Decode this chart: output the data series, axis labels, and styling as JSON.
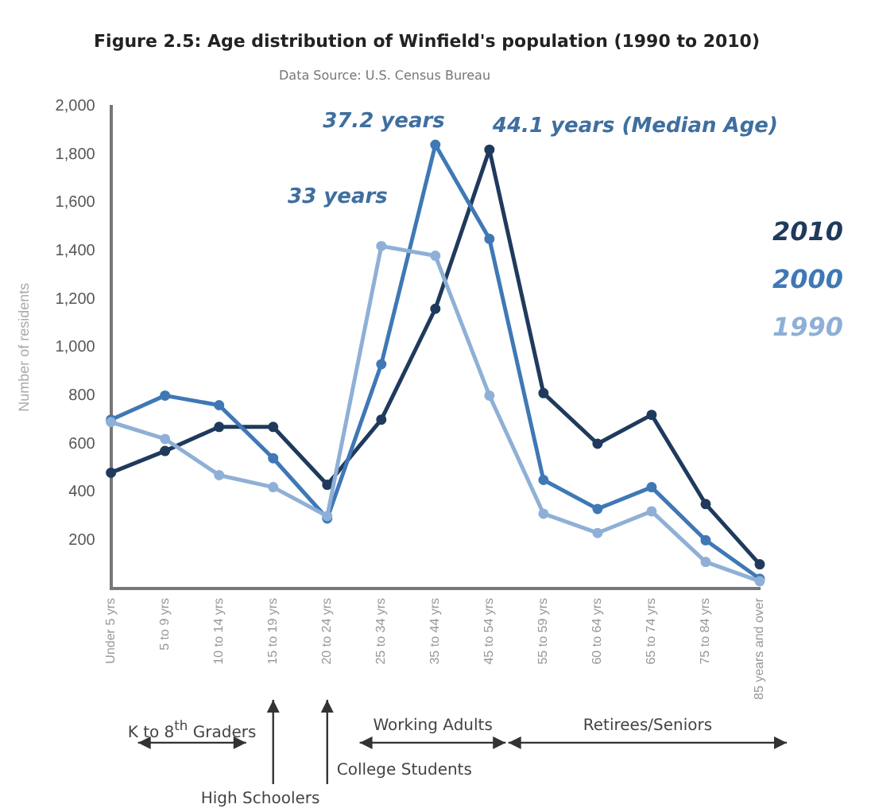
{
  "chart_data": {
    "type": "line",
    "title": "Figure 2.5: Age distribution of Winfield's population (1990 to 2010)",
    "subtitle": "Data Source: U.S. Census Bureau",
    "ylabel": "Number of residents",
    "categories": [
      "Under 5 yrs",
      "5 to 9 yrs",
      "10 to 14 yrs",
      "15 to 19 yrs",
      "20 to 24 yrs",
      "25 to 34 yrs",
      "35 to 44 yrs",
      "45 to 54 yrs",
      "55 to 59 yrs",
      "60 to 64 yrs",
      "65 to 74 yrs",
      "75 to 84 yrs",
      "85 years and over"
    ],
    "series": [
      {
        "name": "2010",
        "color": "#1f3a5c",
        "values": [
          480,
          570,
          670,
          670,
          430,
          700,
          1160,
          1820,
          810,
          600,
          720,
          350,
          100
        ]
      },
      {
        "name": "2000",
        "color": "#3f78b5",
        "values": [
          700,
          800,
          760,
          540,
          290,
          930,
          1840,
          1450,
          450,
          330,
          420,
          200,
          40
        ]
      },
      {
        "name": "1990",
        "color": "#8fb0d6",
        "values": [
          690,
          620,
          470,
          420,
          300,
          1420,
          1380,
          800,
          310,
          230,
          320,
          110,
          30
        ]
      }
    ],
    "ylim": [
      0,
      2000
    ],
    "yticks": [
      200,
      400,
      600,
      800,
      {
        "value": 1000,
        "label": "1,000"
      },
      {
        "value": 1200,
        "label": "1,200"
      },
      {
        "value": 1400,
        "label": "1,400"
      },
      {
        "value": 1600,
        "label": "1,600"
      },
      {
        "value": 1800,
        "label": "1,800"
      },
      {
        "value": 2000,
        "label": "2,000"
      }
    ],
    "grid": false,
    "legend": "right",
    "marker": "circle",
    "line_style": "solid",
    "annotations": [
      {
        "text": "33 years",
        "x": "25 to 34 yrs",
        "y": 1420
      },
      {
        "text": "37.2 years",
        "x": "35 to 44 yrs",
        "y": 1840
      },
      {
        "text": "44.1 years (Median Age)",
        "x": "45 to 54 yrs",
        "y": 1820
      },
      "K to 8$^{th}$ Graders",
      "High Schoolers",
      "College Students",
      "Working Adults",
      "Retirees/Seniors"
    ]
  }
}
